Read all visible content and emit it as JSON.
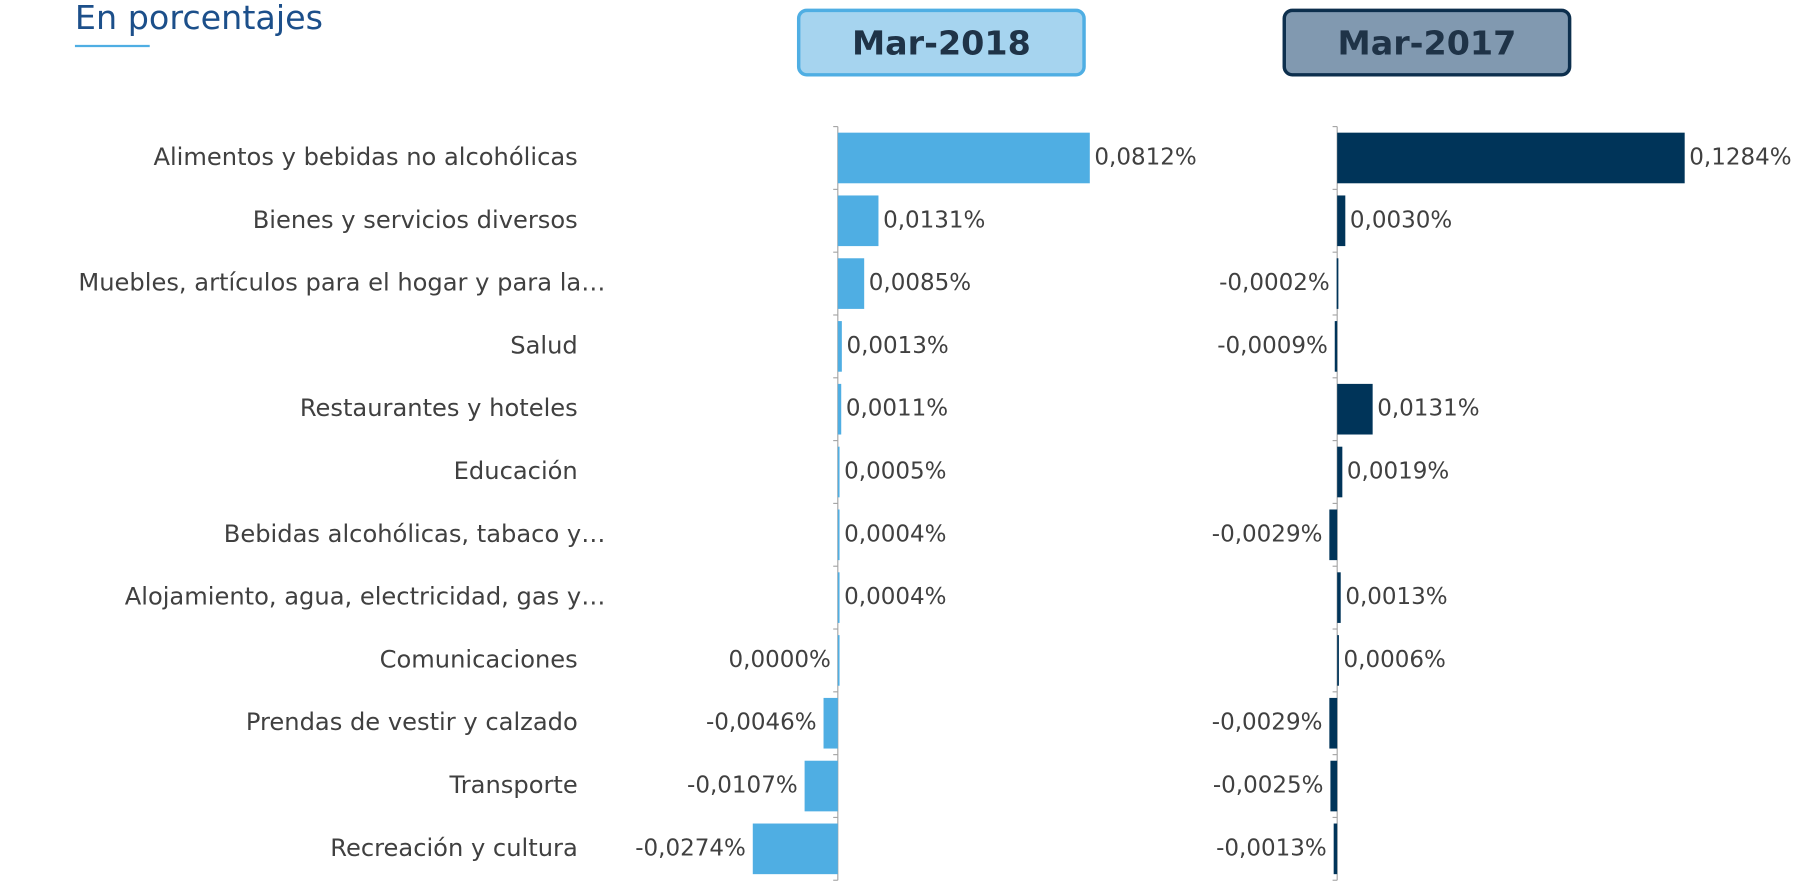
{
  "chart_data": {
    "type": "bar",
    "title": "En porcentajes",
    "categories": [
      "Alimentos y bebidas no alcohólicas",
      "Bienes y servicios diversos",
      "Muebles, artículos para el hogar y para la…",
      "Salud",
      "Restaurantes y hoteles",
      "Educación",
      "Bebidas alcohólicas, tabaco y…",
      "Alojamiento, agua, electricidad, gas y…",
      "Comunicaciones",
      "Prendas de vestir y calzado",
      "Transporte",
      "Recreación y cultura"
    ],
    "series": [
      {
        "name": "Mar-2018",
        "color": "#4faee3",
        "values": [
          0.0812,
          0.0131,
          0.0085,
          0.0013,
          0.0011,
          0.0005,
          0.0004,
          0.0004,
          0,
          -0.0046,
          -0.0107,
          -0.0274
        ],
        "value_labels": [
          "0,0812%",
          "0,0131%",
          "0,0085%",
          "0,0013%",
          "0,0011%",
          "0,0005%",
          "0,0004%",
          "0,0004%",
          "0,0000%",
          "-0,0046%",
          "-0,0107%",
          "-0,0274%"
        ]
      },
      {
        "name": "Mar-2017",
        "color": "#003459",
        "values": [
          0.1284,
          0.003,
          -0.0002,
          -0.0009,
          0.0131,
          0.0019,
          -0.0029,
          0.0013,
          0.0006,
          -0.0029,
          -0.0025,
          -0.0013
        ],
        "value_labels": [
          "0,1284%",
          "0,0030%",
          "-0,0002%",
          "-0,0009%",
          "0,0131%",
          "0,0019%",
          "-0,0029%",
          "0,0013%",
          "0,0006%",
          "-0,0029%",
          "-0,0025%",
          "-0,0013%"
        ]
      }
    ]
  }
}
